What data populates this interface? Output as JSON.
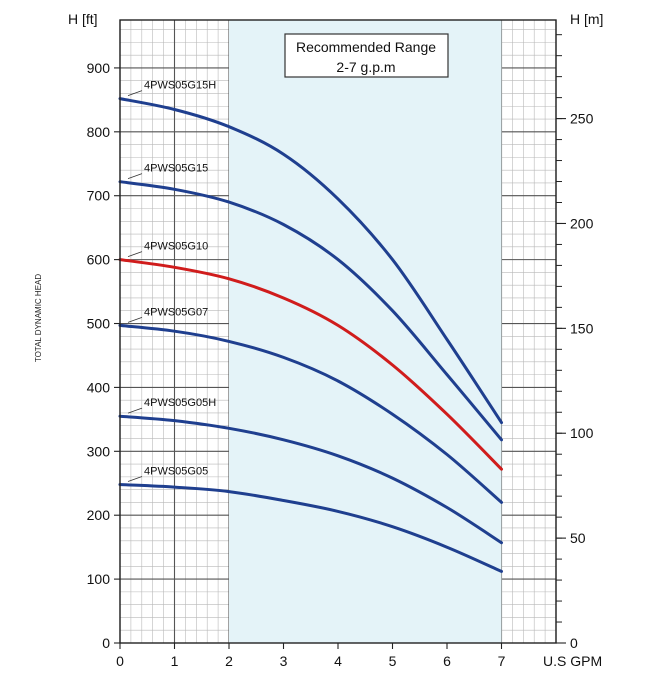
{
  "chart_data": {
    "type": "line",
    "title": "",
    "xlabel": "U.S GPM",
    "ylabel": "TOTAL DYNAMIC HEAD",
    "y_unit_left": "H [ft]",
    "y_unit_right": "H [m]",
    "xlim": [
      0,
      8
    ],
    "ylim": [
      0,
      975
    ],
    "ylim_right": [
      0,
      297
    ],
    "x_ticks": [
      0,
      1,
      2,
      3,
      4,
      5,
      6,
      7
    ],
    "y_ticks": [
      0,
      100,
      200,
      300,
      400,
      500,
      600,
      700,
      800,
      900
    ],
    "y_ticks_right": [
      0,
      50,
      100,
      150,
      200,
      250
    ],
    "grid": true,
    "recommended_range": {
      "label_line1": "Recommended Range",
      "label_line2": "2-7 g.p.m",
      "x_start": 2,
      "x_end": 7,
      "color": "#e4f3f8"
    },
    "series": [
      {
        "name": "4PWS05G15H",
        "color": "#1f3f8f",
        "x": [
          0,
          1,
          2,
          3,
          4,
          5,
          6,
          7
        ],
        "values": [
          852,
          835,
          808,
          765,
          695,
          600,
          475,
          345
        ]
      },
      {
        "name": "4PWS05G15",
        "color": "#1f3f8f",
        "x": [
          0,
          1,
          2,
          3,
          4,
          5,
          6,
          7
        ],
        "values": [
          722,
          710,
          690,
          655,
          600,
          520,
          420,
          318
        ]
      },
      {
        "name": "4PWS05G10",
        "color": "#d01c1c",
        "x": [
          0,
          1,
          2,
          3,
          4,
          5,
          6,
          7
        ],
        "values": [
          600,
          588,
          570,
          540,
          497,
          435,
          358,
          272
        ]
      },
      {
        "name": "4PWS05G07",
        "color": "#1f3f8f",
        "x": [
          0,
          1,
          2,
          3,
          4,
          5,
          6,
          7
        ],
        "values": [
          497,
          488,
          472,
          447,
          410,
          358,
          295,
          220
        ]
      },
      {
        "name": "4PWS05G05H",
        "color": "#1f3f8f",
        "x": [
          0,
          1,
          2,
          3,
          4,
          5,
          6,
          7
        ],
        "values": [
          355,
          348,
          336,
          318,
          293,
          258,
          212,
          157
        ]
      },
      {
        "name": "4PWS05G05",
        "color": "#1f3f8f",
        "x": [
          0,
          1,
          2,
          3,
          4,
          5,
          6,
          7
        ],
        "values": [
          248,
          244,
          237,
          223,
          206,
          182,
          150,
          112
        ]
      }
    ]
  }
}
